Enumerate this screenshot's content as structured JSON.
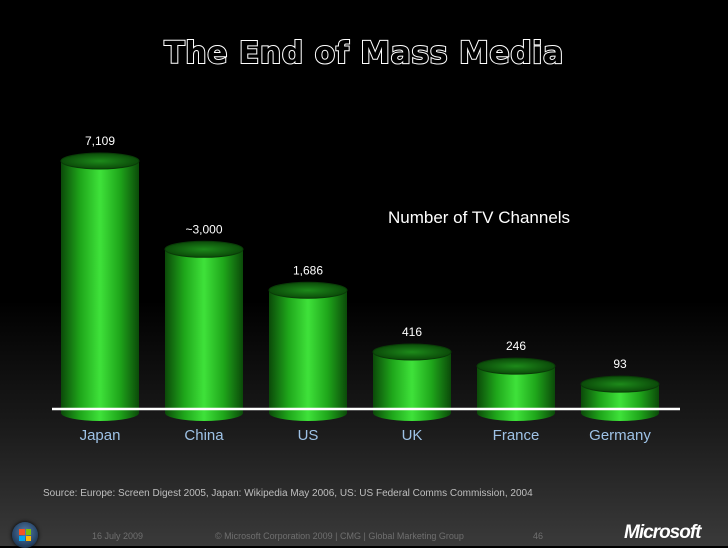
{
  "slide": {
    "title": "The End of Mass Media",
    "source": "Source: Europe: Screen Digest 2005, Japan: Wikipedia May 2006, US: US Federal Comms Commission, 2004",
    "footer": {
      "date": "16 July 2009",
      "copyright": "© Microsoft Corporation 2009 | CMG | Global Marketing Group",
      "page": "46",
      "logo_text": "Microsoft"
    }
  },
  "chart_data": {
    "type": "bar",
    "title": "",
    "series_name": "Number of TV Channels",
    "categories": [
      "Japan",
      "China",
      "US",
      "UK",
      "France",
      "Germany"
    ],
    "values": [
      7109,
      3000,
      1686,
      416,
      246,
      93
    ],
    "value_labels": [
      "7,109",
      "~3,000",
      "1,686",
      "416",
      "246",
      "93"
    ],
    "ylim": [
      0,
      7109
    ],
    "scale": "nonlinear (decorative bar heights)",
    "grid": false,
    "colors": {
      "bar": "#22c21e",
      "bar_dark": "#0a5a08",
      "bar_light": "#5ef05a",
      "baseline": "#ffffff",
      "label": "#ffffff",
      "category_label": "#9ec2e6"
    }
  }
}
